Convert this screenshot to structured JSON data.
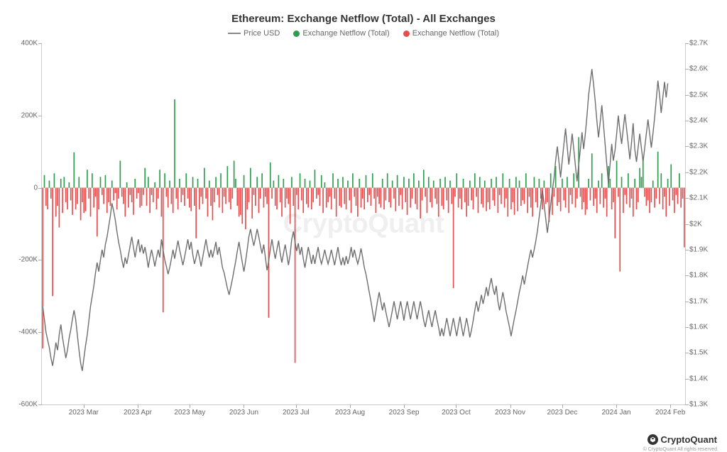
{
  "title": "Ethereum: Exchange Netflow (Total) - All Exchanges",
  "legend": {
    "price": "Price USD",
    "inflow": "Exchange Netflow (Total)",
    "outflow": "Exchange Netflow (Total)"
  },
  "watermark": "CryptoQuant",
  "footer": {
    "brand": "CryptoQuant",
    "copyright": "© CryptoQuant All rights reserved"
  },
  "colors": {
    "price_line": "#6e6e6e",
    "inflow": "#2e9e4e",
    "outflow": "#e84d4d",
    "axis": "#cccccc",
    "text": "#666666",
    "background": "#ffffff",
    "watermark": "#000000"
  },
  "chart": {
    "type": "combo-bar-line",
    "left_axis": {
      "min": -600000,
      "max": 400000,
      "tick_step": 200000,
      "ticks": [
        "-600K",
        "-400K",
        "-200K",
        "0",
        "200K",
        "400K"
      ]
    },
    "right_axis": {
      "min": 1300,
      "max": 2700,
      "tick_step": 100,
      "ticks": [
        "$1.3K",
        "$1.4K",
        "$1.5K",
        "$1.6K",
        "$1.7K",
        "$1.8K",
        "$1.9K",
        "$2K",
        "$2.1K",
        "$2.2K",
        "$2.3K",
        "$2.4K",
        "$2.5K",
        "$2.6K",
        "$2.7K"
      ]
    },
    "x_labels": [
      "2023 Mar",
      "2023 Apr",
      "2023 May",
      "2023 Jun",
      "2023 Jul",
      "2023 Aug",
      "2023 Sep",
      "2023 Oct",
      "2023 Nov",
      "2023 Dec",
      "2024 Jan",
      "2024 Feb"
    ],
    "x_label_positions_pct": [
      6.5,
      14.9,
      23.0,
      31.4,
      39.5,
      47.9,
      56.3,
      64.4,
      72.8,
      80.9,
      89.3,
      97.7
    ],
    "netflow": [
      -445,
      35,
      -50,
      -60,
      20,
      -30,
      -300,
      40,
      -80,
      -50,
      -110,
      25,
      -70,
      30,
      -40,
      -60,
      15,
      -35,
      -75,
      98,
      -60,
      -45,
      30,
      -90,
      -40,
      -70,
      -65,
      50,
      -30,
      -80,
      40,
      -55,
      -25,
      -135,
      -60,
      30,
      -20,
      -45,
      35,
      -70,
      -40,
      -50,
      20,
      -35,
      -15,
      -60,
      -30,
      75,
      -25,
      -45,
      -80,
      15,
      -55,
      -20,
      -40,
      -75,
      25,
      -30,
      -15,
      -55,
      -50,
      -20,
      55,
      -50,
      30,
      -70,
      -20,
      -40,
      15,
      -60,
      -30,
      50,
      -80,
      -345,
      40,
      -25,
      -55,
      20,
      -45,
      -70,
      245,
      -30,
      -60,
      25,
      -40,
      -20,
      -50,
      40,
      -30,
      -55,
      -65,
      30,
      -50,
      -140,
      25,
      -60,
      -25,
      -45,
      55,
      -30,
      -80,
      20,
      -50,
      -90,
      -40,
      30,
      -20,
      -55,
      40,
      -70,
      -25,
      -45,
      60,
      -40,
      -60,
      -30,
      75,
      25,
      -50,
      -80,
      -75,
      -100,
      35,
      -115,
      -60,
      -40,
      55,
      -85,
      -20,
      -50,
      30,
      -70,
      -30,
      40,
      -55,
      -25,
      -45,
      -360,
      70,
      -30,
      20,
      -50,
      -60,
      35,
      -40,
      -80,
      25,
      -55,
      -30,
      -45,
      -100,
      30,
      -50,
      -485,
      -20,
      -60,
      40,
      -35,
      -70,
      25,
      -45,
      -55,
      20,
      -60,
      -40,
      50,
      -30,
      -20,
      -50,
      35,
      -70,
      15,
      -55,
      -40,
      -25,
      -60,
      40,
      -30,
      -80,
      25,
      -50,
      -55,
      30,
      -45,
      -60,
      20,
      -35,
      -70,
      40,
      -25,
      -50,
      -80,
      25,
      -55,
      -30,
      -60,
      35,
      -40,
      -20,
      -50,
      40,
      -30,
      -70,
      -25,
      -45,
      -55,
      25,
      -60,
      -35,
      40,
      -40,
      -55,
      20,
      -30,
      -65,
      35,
      -50,
      -20,
      -60,
      30,
      -40,
      -75,
      25,
      -55,
      -30,
      40,
      -45,
      -60,
      20,
      -85,
      -35,
      50,
      -25,
      -70,
      30,
      -40,
      -55,
      20,
      -30,
      -45,
      -80,
      25,
      -50,
      -60,
      30,
      -35,
      -70,
      20,
      -45,
      -278,
      -25,
      40,
      -55,
      -30,
      -60,
      25,
      -40,
      -80,
      -50,
      20,
      -35,
      -60,
      40,
      -25,
      -70,
      30,
      -45,
      -55,
      20,
      -65,
      -40,
      -60,
      25,
      -35,
      -50,
      30,
      -70,
      -20,
      -45,
      40,
      -55,
      -30,
      -80,
      25,
      -60,
      -40,
      -75,
      30,
      -65,
      20,
      -50,
      -35,
      -45,
      40,
      -70,
      -25,
      -55,
      -80,
      30,
      -40,
      -55,
      25,
      -30,
      -60,
      20,
      -45,
      -40,
      -95,
      40,
      -75,
      -25,
      60,
      -50,
      -40,
      -65,
      25,
      -35,
      -55,
      30,
      -70,
      -20,
      -45,
      40,
      -55,
      -30,
      140,
      -25,
      -60,
      -40,
      -75,
      -60,
      25,
      -35,
      95,
      -50,
      -30,
      -70,
      20,
      -45,
      40,
      -55,
      -30,
      -80,
      60,
      25,
      -60,
      -40,
      -140,
      75,
      -25,
      -232,
      30,
      -70,
      -20,
      -45,
      40,
      -55,
      -30,
      -80,
      25,
      -60,
      -40,
      55,
      30,
      75,
      -25,
      -50,
      -35,
      -70,
      -40,
      20,
      -55,
      -30,
      100,
      -45,
      40,
      -60,
      -25,
      -80,
      25,
      -50,
      65,
      -35,
      -70,
      -20,
      -45,
      40,
      -55,
      -30,
      -165
    ],
    "price_usd": [
      1680,
      1630,
      1580,
      1550,
      1520,
      1480,
      1450,
      1490,
      1540,
      1510,
      1570,
      1610,
      1560,
      1520,
      1480,
      1510,
      1556,
      1590,
      1630,
      1665,
      1630,
      1570,
      1510,
      1460,
      1430,
      1480,
      1530,
      1570,
      1625,
      1680,
      1720,
      1760,
      1810,
      1850,
      1815,
      1860,
      1900,
      1870,
      1920,
      1950,
      1990,
      2030,
      2080,
      2050,
      2015,
      1970,
      1930,
      1900,
      1860,
      1830,
      1870,
      1845,
      1880,
      1915,
      1950,
      1910,
      1870,
      1910,
      1940,
      1890,
      1920,
      1885,
      1910,
      1875,
      1830,
      1870,
      1900,
      1870,
      1835,
      1870,
      1900,
      1870,
      1940,
      1900,
      1860,
      1835,
      1805,
      1830,
      1865,
      1900,
      1865,
      1900,
      1935,
      1900,
      1870,
      1840,
      1870,
      1905,
      1940,
      1900,
      1930,
      1880,
      1845,
      1870,
      1900,
      1870,
      1835,
      1870,
      1905,
      1940,
      1900,
      1870,
      1900,
      1870,
      1900,
      1930,
      1880,
      1910,
      1870,
      1830,
      1810,
      1780,
      1750,
      1725,
      1755,
      1785,
      1820,
      1855,
      1895,
      1930,
      1890,
      1850,
      1815,
      1855,
      1900,
      1950,
      1980,
      1945,
      1915,
      1945,
      1980,
      1950,
      1915,
      1885,
      1920,
      1870,
      1820,
      1855,
      1900,
      1940,
      1900,
      1865,
      1900,
      1935,
      1885,
      1850,
      1885,
      1920,
      1880,
      1840,
      1880,
      1940,
      1970,
      1930,
      1895,
      1925,
      1880,
      1910,
      1865,
      1830,
      1870,
      1910,
      1880,
      1845,
      1880,
      1845,
      1880,
      1910,
      1870,
      1845,
      1870,
      1900,
      1870,
      1845,
      1870,
      1900,
      1870,
      1840,
      1875,
      1910,
      1870,
      1840,
      1870,
      1840,
      1875,
      1845,
      1870,
      1910,
      1870,
      1900,
      1870,
      1845,
      1870,
      1905,
      1870,
      1830,
      1805,
      1770,
      1735,
      1700,
      1660,
      1620,
      1660,
      1700,
      1735,
      1700,
      1665,
      1695,
      1660,
      1630,
      1600,
      1630,
      1665,
      1700,
      1665,
      1630,
      1665,
      1700,
      1665,
      1625,
      1665,
      1700,
      1665,
      1630,
      1665,
      1700,
      1665,
      1630,
      1665,
      1700,
      1665,
      1625,
      1600,
      1635,
      1665,
      1630,
      1600,
      1635,
      1665,
      1630,
      1600,
      1565,
      1595,
      1565,
      1600,
      1635,
      1600,
      1565,
      1600,
      1635,
      1600,
      1565,
      1605,
      1640,
      1600,
      1565,
      1600,
      1635,
      1600,
      1560,
      1590,
      1625,
      1665,
      1700,
      1660,
      1690,
      1725,
      1690,
      1720,
      1755,
      1720,
      1760,
      1790,
      1750,
      1725,
      1760,
      1700,
      1665,
      1700,
      1735,
      1700,
      1660,
      1630,
      1600,
      1565,
      1600,
      1635,
      1665,
      1700,
      1735,
      1765,
      1800,
      1765,
      1800,
      1835,
      1870,
      1900,
      1870,
      1900,
      1935,
      1975,
      2025,
      2075,
      2130,
      2075,
      2020,
      1965,
      2020,
      2075,
      2130,
      2175,
      2245,
      2300,
      2240,
      2180,
      2245,
      2310,
      2370,
      2300,
      2230,
      2285,
      2350,
      2290,
      2225,
      2165,
      2230,
      2290,
      2355,
      2290,
      2350,
      2420,
      2500,
      2550,
      2600,
      2540,
      2475,
      2400,
      2335,
      2395,
      2460,
      2385,
      2310,
      2230,
      2155,
      2230,
      2310,
      2245,
      2285,
      2350,
      2420,
      2360,
      2310,
      2370,
      2425,
      2370,
      2310,
      2250,
      2315,
      2390,
      2290,
      2240,
      2295,
      2350,
      2295,
      2240,
      2295,
      2350,
      2405,
      2350,
      2295,
      2350,
      2410,
      2480,
      2555,
      2500,
      2430,
      2490,
      2550,
      2490,
      2545
    ],
    "bar_width_pct": 0.18,
    "line_width": 1.4,
    "fontsize_title": 15,
    "fontsize_legend": 11,
    "fontsize_axis": 10
  }
}
